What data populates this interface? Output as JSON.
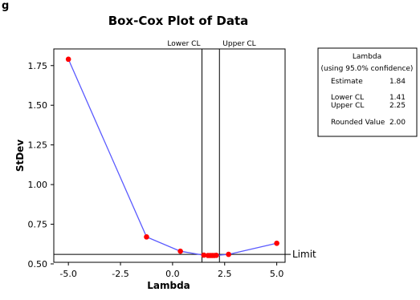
{
  "top_left_glyph": "g",
  "chart_data": {
    "type": "line",
    "title": "Box-Cox Plot of Data",
    "xlabel": "Lambda",
    "ylabel": "StDev",
    "xlim": [
      -5.7,
      5.4
    ],
    "ylim": [
      0.51,
      1.855
    ],
    "x_ticks": [
      -5.0,
      -2.5,
      0.0,
      2.5,
      5.0
    ],
    "x_tick_labels": [
      "-5.0",
      "-2.5",
      "0.0",
      "2.5",
      "5.0"
    ],
    "y_ticks": [
      0.5,
      0.75,
      1.0,
      1.25,
      1.5,
      1.75
    ],
    "y_tick_labels": [
      "0.50",
      "0.75",
      "1.00",
      "1.25",
      "1.50",
      "1.75"
    ],
    "grid": false,
    "series": [
      {
        "x": [
          -5.0,
          -1.25,
          0.375,
          1.5,
          1.7,
          1.8,
          1.9,
          2.0,
          2.1,
          2.6875,
          5.0
        ],
        "y": [
          1.79,
          0.67,
          0.58,
          0.555,
          0.553,
          0.553,
          0.553,
          0.553,
          0.554,
          0.56,
          0.63
        ],
        "color": "#5a5aff",
        "marker_color": "#ff0000"
      }
    ],
    "limit_line": {
      "y": 0.56,
      "label": "Limit"
    },
    "confidence_lines": [
      {
        "x": 1.41,
        "label": "Lower CL"
      },
      {
        "x": 2.25,
        "label": "Upper CL"
      }
    ],
    "legend_box": {
      "position": "top-right",
      "title": "Lambda",
      "subtitle": "(using 95.0% confidence)",
      "rows": [
        {
          "label": "Estimate",
          "value": "1.84"
        },
        {
          "label": "Lower CL",
          "value": "1.41"
        },
        {
          "label": "Upper CL",
          "value": "2.25"
        },
        {
          "label": "Rounded Value",
          "value": "2.00"
        }
      ]
    }
  }
}
